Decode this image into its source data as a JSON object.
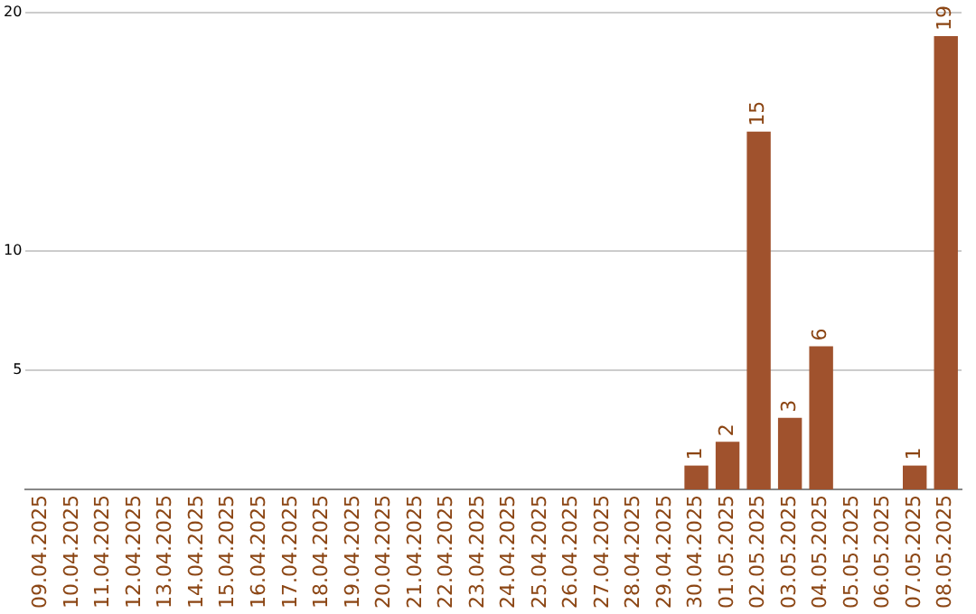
{
  "chart_data": {
    "type": "bar",
    "categories": [
      "09.04.2025",
      "10.04.2025",
      "11.04.2025",
      "12.04.2025",
      "13.04.2025",
      "14.04.2025",
      "15.04.2025",
      "16.04.2025",
      "17.04.2025",
      "18.04.2025",
      "19.04.2025",
      "20.04.2025",
      "21.04.2025",
      "22.04.2025",
      "23.04.2025",
      "24.04.2025",
      "25.04.2025",
      "26.04.2025",
      "27.04.2025",
      "28.04.2025",
      "29.04.2025",
      "30.04.2025",
      "01.05.2025",
      "02.05.2025",
      "03.05.2025",
      "04.05.2025",
      "05.05.2025",
      "06.05.2025",
      "07.05.2025",
      "08.05.2025"
    ],
    "values": [
      0,
      0,
      0,
      0,
      0,
      0,
      0,
      0,
      0,
      0,
      0,
      0,
      0,
      0,
      0,
      0,
      0,
      0,
      0,
      0,
      0,
      1,
      2,
      15,
      3,
      6,
      0,
      0,
      1,
      19
    ],
    "value_labels": [
      null,
      null,
      null,
      null,
      null,
      null,
      null,
      null,
      null,
      null,
      null,
      null,
      null,
      null,
      null,
      null,
      null,
      null,
      null,
      null,
      null,
      "1",
      "2",
      "15",
      "3",
      "6",
      null,
      null,
      "1",
      "19"
    ],
    "color": "#a0522d",
    "ylim": [
      0,
      20
    ],
    "yticks": [
      5,
      10,
      20
    ],
    "grid": "y",
    "legend": false
  }
}
